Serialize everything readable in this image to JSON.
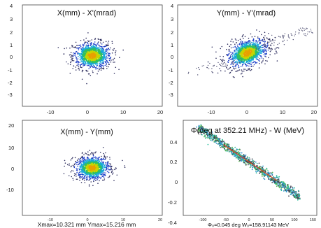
{
  "chart_data": [
    {
      "type": "scatter",
      "title": "X(mm) - X'(mrad)",
      "xlim": [
        -20,
        20
      ],
      "ylim": [
        -4,
        4
      ],
      "x_ticks": [
        "-10",
        "0",
        "10",
        "20"
      ],
      "y_ticks": [
        "4",
        "3",
        "2",
        "1",
        "0",
        "-1",
        "-2",
        "-3"
      ],
      "distribution": {
        "center": [
          0,
          0
        ],
        "spread_x": 2.8,
        "spread_y": 0.55,
        "correlation": 0.0
      },
      "footer": ""
    },
    {
      "type": "scatter",
      "title": "Y(mm) - Y'(mrad)",
      "xlim": [
        -20,
        20
      ],
      "ylim": [
        -4,
        4
      ],
      "x_ticks": [
        "-10",
        "0",
        "10",
        "20"
      ],
      "y_ticks": [
        "4",
        "3",
        "2",
        "1",
        "0",
        "-1",
        "-2",
        "-3"
      ],
      "distribution": {
        "center": [
          0,
          0.2
        ],
        "spread_x": 3.0,
        "spread_y": 0.6,
        "correlation": 0.35
      },
      "footer": ""
    },
    {
      "type": "scatter",
      "title": "X(mm) - Y(mm)",
      "xlim": [
        -20,
        20
      ],
      "ylim": [
        -20,
        20
      ],
      "x_ticks": [
        "-10",
        "0",
        "10",
        "20"
      ],
      "y_ticks": [
        "20",
        "10",
        "0",
        "-10"
      ],
      "distribution": {
        "center": [
          0,
          0
        ],
        "spread_x": 2.6,
        "spread_y": 2.6,
        "correlation": 0.0
      },
      "footer": "Xmax=10.321 mm  Ymax=15.216 mm"
    },
    {
      "type": "scatter",
      "title": "Φ(deg at 352.21 MHz) - W (MeV)",
      "xlim": [
        -150,
        150
      ],
      "ylim": [
        -0.5,
        0.4
      ],
      "x_ticks": [
        "-100",
        "-50",
        "0",
        "50",
        "100",
        "150"
      ],
      "y_ticks": [
        "0.4",
        "0.2",
        "0",
        "-0.2",
        "-0.4"
      ],
      "distribution": {
        "line_from": [
          -115,
          0.33
        ],
        "line_to": [
          112,
          -0.33
        ],
        "thickness": 0.02
      },
      "footer": "Φ₀=0.045 deg  W₀=158.91143 MeV"
    }
  ]
}
